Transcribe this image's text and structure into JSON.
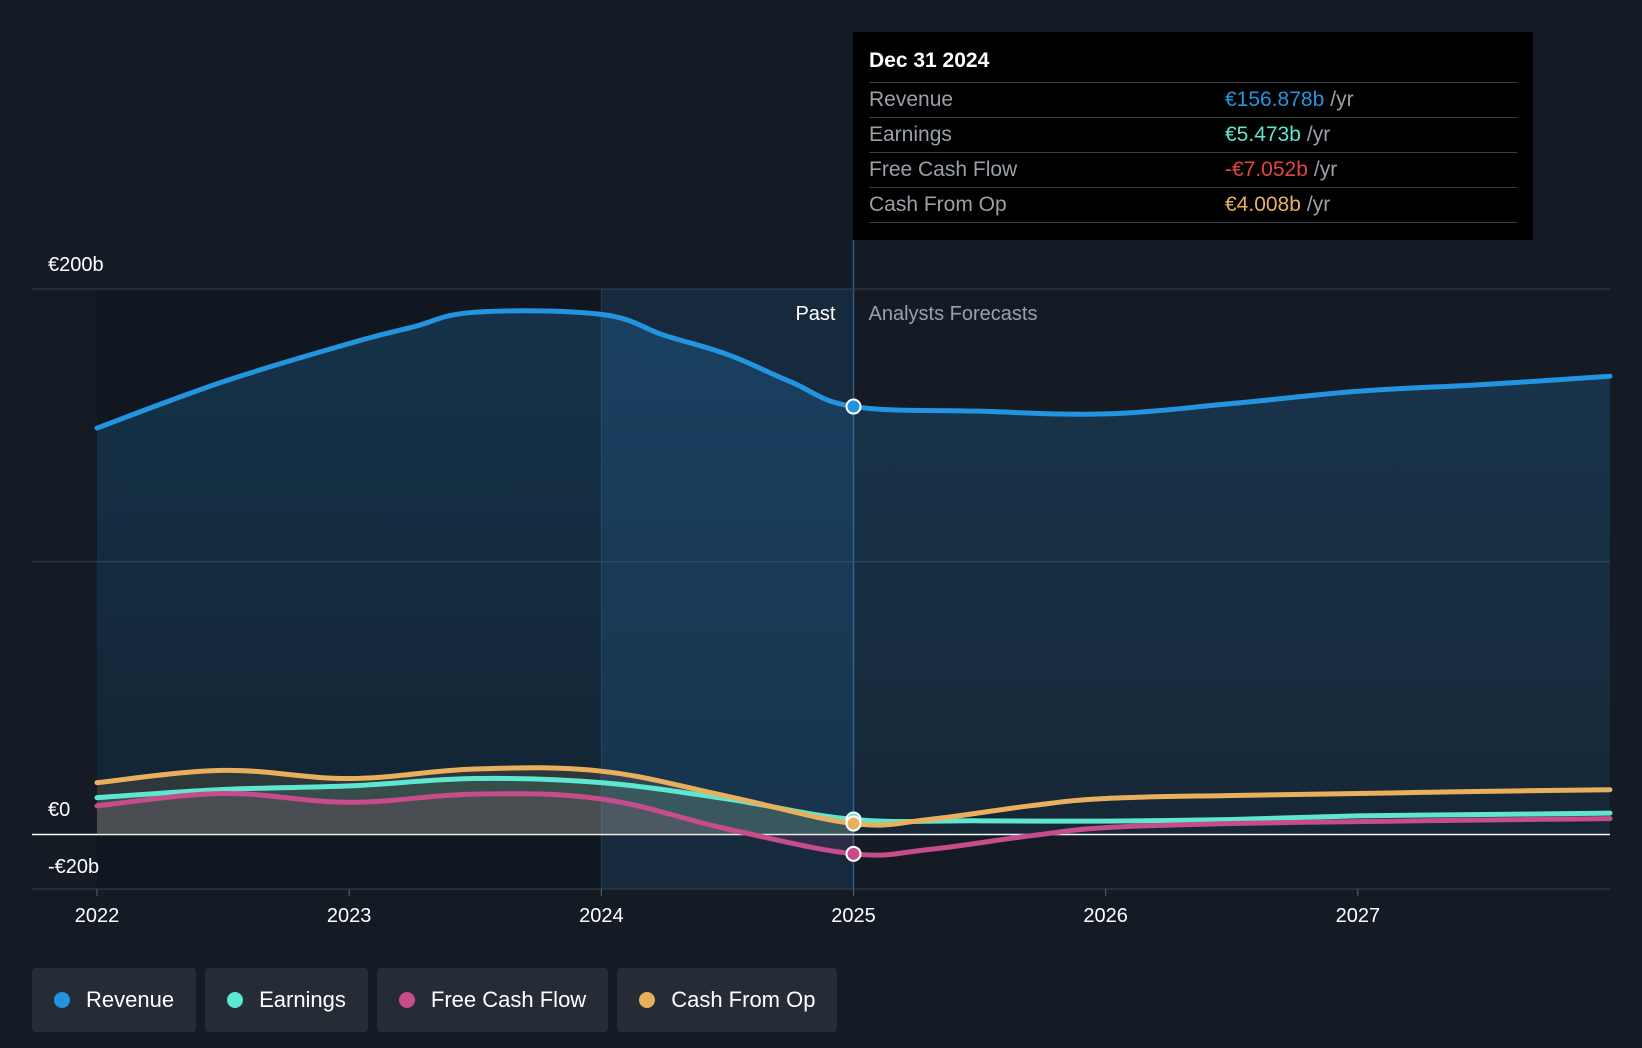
{
  "colors": {
    "revenue": "#2394df",
    "earnings": "#5ee6d0",
    "fcf": "#c64c8b",
    "cfo": "#e8b05d",
    "background": "#151b24"
  },
  "tooltip": {
    "date": "Dec 31 2024",
    "rows": [
      {
        "label": "Revenue",
        "value": "€156.878b",
        "unit": "/yr",
        "color": "#2394df"
      },
      {
        "label": "Earnings",
        "value": "€5.473b",
        "unit": "/yr",
        "color": "#5ee6d0"
      },
      {
        "label": "Free Cash Flow",
        "value": "-€7.052b",
        "unit": "/yr",
        "color": "#e2463d"
      },
      {
        "label": "Cash From Op",
        "value": "€4.008b",
        "unit": "/yr",
        "color": "#e8b05d"
      }
    ]
  },
  "legend": [
    {
      "label": "Revenue",
      "color": "#2394df"
    },
    {
      "label": "Earnings",
      "color": "#5ee6d0"
    },
    {
      "label": "Free Cash Flow",
      "color": "#c64c8b"
    },
    {
      "label": "Cash From Op",
      "color": "#e8b05d"
    }
  ],
  "chart_data": {
    "type": "line",
    "title": "",
    "xlabel": "",
    "ylabel": "",
    "ylim": [
      -20,
      200
    ],
    "xlim": [
      2022,
      2028
    ],
    "y_ticks": [
      {
        "value": 200,
        "label": "€200b"
      },
      {
        "value": 0,
        "label": "€0"
      },
      {
        "value": -20,
        "label": "-€20b"
      }
    ],
    "x_ticks": [
      {
        "value": 2022,
        "label": "2022"
      },
      {
        "value": 2023,
        "label": "2023"
      },
      {
        "value": 2024,
        "label": "2024"
      },
      {
        "value": 2025,
        "label": "2025"
      },
      {
        "value": 2026,
        "label": "2026"
      },
      {
        "value": 2027,
        "label": "2027"
      }
    ],
    "past_label": "Past",
    "forecast_label": "Analysts Forecasts",
    "past_end": 2025,
    "highlight_start": 2024,
    "series": [
      {
        "name": "Revenue",
        "key": "revenue",
        "points": [
          [
            2022,
            149
          ],
          [
            2022.5,
            166
          ],
          [
            2023,
            180
          ],
          [
            2023.25,
            186
          ],
          [
            2023.5,
            191.5
          ],
          [
            2024,
            190.7
          ],
          [
            2024.25,
            183
          ],
          [
            2024.5,
            176
          ],
          [
            2024.75,
            166
          ],
          [
            2025,
            156.9
          ],
          [
            2025.5,
            155.2
          ],
          [
            2026,
            154.2
          ],
          [
            2026.5,
            158
          ],
          [
            2027,
            162.5
          ],
          [
            2027.5,
            165
          ],
          [
            2028,
            168
          ]
        ]
      },
      {
        "name": "Earnings",
        "key": "earnings",
        "points": [
          [
            2022,
            13.5
          ],
          [
            2022.5,
            16.5
          ],
          [
            2023,
            17.8
          ],
          [
            2023.5,
            20.5
          ],
          [
            2024,
            19
          ],
          [
            2024.5,
            13
          ],
          [
            2025,
            5.5
          ],
          [
            2025.5,
            5
          ],
          [
            2026,
            4.9
          ],
          [
            2026.5,
            5.5
          ],
          [
            2027,
            6.8
          ],
          [
            2027.5,
            7.3
          ],
          [
            2028,
            7.8
          ]
        ]
      },
      {
        "name": "Free Cash Flow",
        "key": "fcf",
        "points": [
          [
            2022,
            10.5
          ],
          [
            2022.5,
            15
          ],
          [
            2023,
            11.8
          ],
          [
            2023.5,
            14.8
          ],
          [
            2024,
            13
          ],
          [
            2024.5,
            2
          ],
          [
            2025,
            -7.1
          ],
          [
            2025.3,
            -5.5
          ],
          [
            2025.7,
            -0.5
          ],
          [
            2026,
            2.5
          ],
          [
            2026.5,
            4
          ],
          [
            2027,
            4.7
          ],
          [
            2027.5,
            5.3
          ],
          [
            2028,
            5.8
          ]
        ]
      },
      {
        "name": "Cash From Op",
        "key": "cfo",
        "points": [
          [
            2022,
            19
          ],
          [
            2022.5,
            23.5
          ],
          [
            2023,
            20.5
          ],
          [
            2023.5,
            24
          ],
          [
            2024,
            23.2
          ],
          [
            2024.5,
            14
          ],
          [
            2025,
            4
          ],
          [
            2025.3,
            5.5
          ],
          [
            2025.7,
            10.5
          ],
          [
            2026,
            13.2
          ],
          [
            2026.5,
            14.3
          ],
          [
            2027,
            15
          ],
          [
            2027.5,
            15.8
          ],
          [
            2028,
            16.4
          ]
        ]
      }
    ]
  }
}
